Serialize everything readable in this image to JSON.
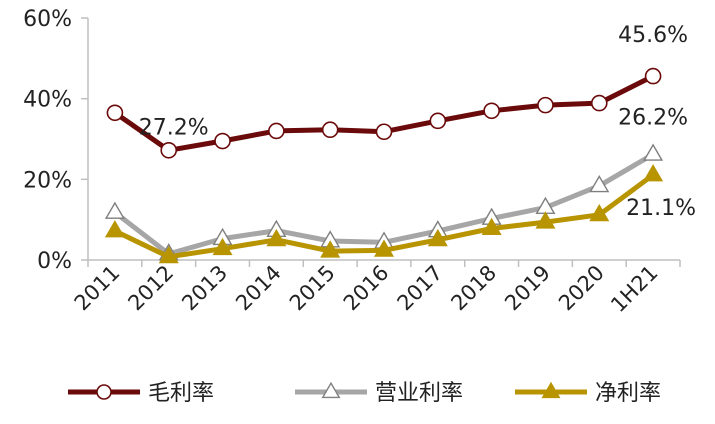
{
  "chart_data": {
    "type": "line",
    "categories": [
      "2011",
      "2012",
      "2013",
      "2014",
      "2015",
      "2016",
      "2017",
      "2018",
      "2019",
      "2020",
      "1H21"
    ],
    "ylim": [
      0,
      60
    ],
    "yticks": [
      "0%",
      "20%",
      "40%",
      "60%"
    ],
    "grid": false,
    "legend_position": "bottom",
    "series": [
      {
        "name": "毛利率",
        "color": "#6b0a0a",
        "marker": "circle-open",
        "values": [
          36.5,
          27.2,
          29.5,
          32.0,
          32.3,
          31.8,
          34.5,
          37.0,
          38.4,
          38.9,
          45.6
        ]
      },
      {
        "name": "营业利率",
        "color": "#a6a6a6",
        "marker": "triangle-open",
        "values": [
          11.8,
          1.5,
          5.3,
          7.3,
          4.7,
          4.4,
          7.2,
          10.3,
          13.0,
          18.4,
          26.2
        ]
      },
      {
        "name": "净利率",
        "color": "#b89400",
        "marker": "triangle-filled",
        "values": [
          7.2,
          0.8,
          2.8,
          5.0,
          2.2,
          2.4,
          5.0,
          7.8,
          9.4,
          11.2,
          21.1
        ]
      }
    ],
    "annotations": [
      {
        "text": "27.2%",
        "series": 0,
        "index": 1
      },
      {
        "text": "45.6%",
        "series": 0,
        "index": 10
      },
      {
        "text": "26.2%",
        "series": 1,
        "index": 10
      },
      {
        "text": "21.1%",
        "series": 2,
        "index": 10
      }
    ]
  }
}
